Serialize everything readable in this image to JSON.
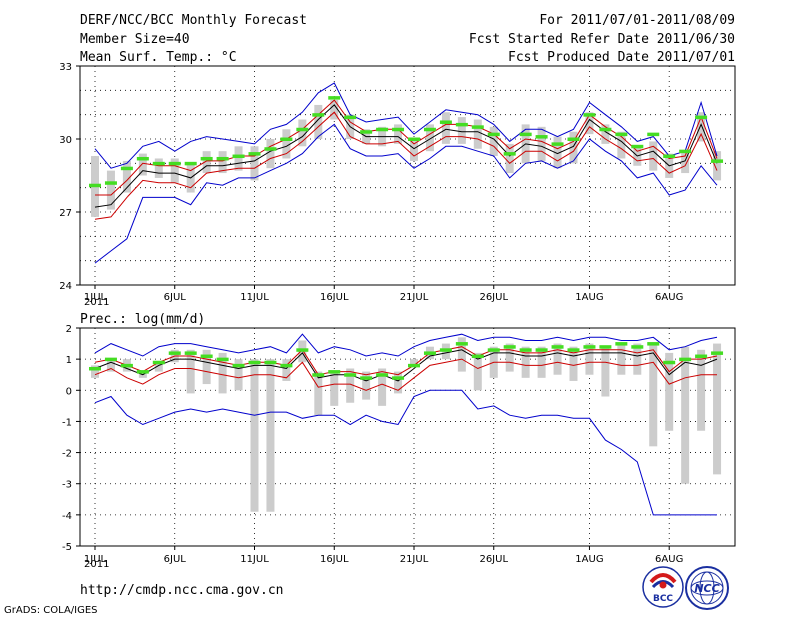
{
  "header": {
    "left": [
      "DERF/NCC/BCC Monthly Forecast",
      "Member Size=40",
      "Mean Surf. Temp.: °C"
    ],
    "right": [
      "For 2011/07/01-2011/08/09",
      "Fcst Started Refer Date 2011/06/30",
      "Fcst Produced Date 2011/07/01"
    ]
  },
  "footer": {
    "url": "http://cmdp.ncc.cma.gov.cn",
    "credit": "GrADS: COLA/IGES",
    "logo1_text": "BCC",
    "logo2_text": "NCC"
  },
  "x_labels": {
    "ticks": [
      "1JUL",
      "6JUL",
      "11JUL",
      "16JUL",
      "21JUL",
      "26JUL",
      "1AUG",
      "6AUG"
    ],
    "tick_days": [
      1,
      6,
      11,
      16,
      21,
      26,
      32,
      37
    ],
    "year": "2011"
  },
  "chart_data": [
    {
      "type": "line",
      "title": "Mean Surf. Temp.: °C",
      "ylabel": "°C",
      "ylim": [
        24,
        33
      ],
      "yticks": [
        24,
        27,
        30,
        33
      ],
      "x": [
        1,
        2,
        3,
        4,
        5,
        6,
        7,
        8,
        9,
        10,
        11,
        12,
        13,
        14,
        15,
        16,
        17,
        18,
        19,
        20,
        21,
        22,
        23,
        24,
        25,
        26,
        27,
        28,
        29,
        30,
        31,
        32,
        33,
        34,
        35,
        36,
        37,
        38,
        39,
        40
      ],
      "series": [
        {
          "name": "max",
          "color": "#0000cc",
          "values": [
            24.9,
            25.4,
            25.9,
            27.6,
            27.6,
            27.6,
            27.3,
            28.2,
            28.1,
            28.4,
            28.4,
            28.7,
            29.0,
            29.4,
            30.1,
            30.6,
            29.6,
            29.3,
            29.3,
            29.4,
            28.8,
            29.2,
            29.7,
            29.7,
            29.5,
            29.3,
            28.4,
            29.0,
            29.1,
            28.8,
            29.1,
            30.0,
            29.5,
            29.1,
            28.4,
            28.6,
            27.7,
            27.9,
            28.9,
            28.1
          ]
        },
        {
          "name": "+1sd",
          "color": "#0000cc",
          "values": [
            29.6,
            28.8,
            29.0,
            29.7,
            29.9,
            29.5,
            29.9,
            30.1,
            30.0,
            29.9,
            29.8,
            30.4,
            30.6,
            31.1,
            31.9,
            32.3,
            31.0,
            30.7,
            30.8,
            30.9,
            30.2,
            30.7,
            31.2,
            31.1,
            31.0,
            30.6,
            29.9,
            30.4,
            30.4,
            30.1,
            30.4,
            31.5,
            31.0,
            30.5,
            29.9,
            30.1,
            29.3,
            29.5,
            31.5,
            29.3
          ]
        },
        {
          "name": "-1sd",
          "color": "#cc0000",
          "values": [
            26.7,
            26.8,
            27.6,
            28.3,
            28.2,
            28.2,
            28.0,
            28.6,
            28.7,
            28.8,
            28.8,
            29.2,
            29.4,
            29.9,
            30.5,
            31.1,
            30.1,
            29.8,
            29.8,
            29.9,
            29.3,
            29.7,
            30.1,
            30.1,
            30.0,
            29.7,
            29.0,
            29.5,
            29.5,
            29.1,
            29.5,
            30.5,
            30.0,
            29.6,
            29.1,
            29.2,
            28.6,
            28.9,
            30.2,
            28.7
          ]
        },
        {
          "name": "mean",
          "color": "#000000",
          "values": [
            27.2,
            27.3,
            28.0,
            28.7,
            28.6,
            28.6,
            28.4,
            28.9,
            28.9,
            29.0,
            29.1,
            29.5,
            29.7,
            30.1,
            30.8,
            31.4,
            30.5,
            30.1,
            30.1,
            30.1,
            29.6,
            30.0,
            30.4,
            30.3,
            30.3,
            30.0,
            29.3,
            29.8,
            29.7,
            29.4,
            29.7,
            30.8,
            30.3,
            29.9,
            29.3,
            29.5,
            28.9,
            29.1,
            30.6,
            29.0
          ]
        },
        {
          "name": "+1sd upper",
          "color": "#cc0000",
          "values": [
            27.7,
            27.7,
            28.3,
            29.0,
            28.9,
            28.9,
            28.7,
            29.1,
            29.1,
            29.3,
            29.3,
            29.7,
            30.0,
            30.4,
            31.0,
            31.6,
            30.7,
            30.3,
            30.4,
            30.4,
            29.8,
            30.2,
            30.6,
            30.6,
            30.5,
            30.2,
            29.6,
            30.0,
            29.9,
            29.6,
            29.9,
            31.0,
            30.5,
            30.1,
            29.5,
            29.7,
            29.2,
            29.3,
            30.9,
            29.2
          ]
        }
      ],
      "bars": {
        "color": "#cccccc",
        "low": [
          26.8,
          27.1,
          27.8,
          28.5,
          28.4,
          28.2,
          27.8,
          28.6,
          28.6,
          28.7,
          28.3,
          28.8,
          29.2,
          29.7,
          30.0,
          30.8,
          30.0,
          29.8,
          29.7,
          29.8,
          29.1,
          29.5,
          29.8,
          29.8,
          29.6,
          29.3,
          28.6,
          29.0,
          29.1,
          28.8,
          29.0,
          30.2,
          29.8,
          29.2,
          28.9,
          28.7,
          28.4,
          28.6,
          29.9,
          28.3
        ],
        "high": [
          29.3,
          28.7,
          29.1,
          29.4,
          29.2,
          29.2,
          29.0,
          29.5,
          29.5,
          29.7,
          29.7,
          30.0,
          30.4,
          30.8,
          31.4,
          31.6,
          31.0,
          30.4,
          30.5,
          30.6,
          30.0,
          30.6,
          31.1,
          30.9,
          30.8,
          30.5,
          29.8,
          30.6,
          30.5,
          30.1,
          30.3,
          31.1,
          30.6,
          30.3,
          29.7,
          29.9,
          29.4,
          29.5,
          31.1,
          29.5
        ]
      },
      "obs": {
        "color": "#44dd22",
        "values": [
          28.1,
          28.2,
          28.8,
          29.2,
          29.0,
          29.0,
          29.0,
          29.2,
          29.2,
          29.3,
          29.4,
          29.6,
          30.0,
          30.4,
          31.0,
          31.7,
          30.9,
          30.3,
          30.4,
          30.4,
          30.0,
          30.4,
          30.7,
          30.6,
          30.5,
          30.2,
          29.4,
          30.2,
          30.1,
          29.8,
          30.0,
          31.0,
          30.4,
          30.2,
          29.7,
          30.2,
          29.3,
          29.5,
          30.9,
          29.1
        ]
      }
    },
    {
      "type": "line",
      "title": "Prec.: log(mm/d)",
      "ylabel": "log(mm/d)",
      "ylim": [
        -5,
        2
      ],
      "yticks": [
        -5,
        -4,
        -3,
        -2,
        -1,
        0,
        1,
        2
      ],
      "x": [
        1,
        2,
        3,
        4,
        5,
        6,
        7,
        8,
        9,
        10,
        11,
        12,
        13,
        14,
        15,
        16,
        17,
        18,
        19,
        20,
        21,
        22,
        23,
        24,
        25,
        26,
        27,
        28,
        29,
        30,
        31,
        32,
        33,
        34,
        35,
        36,
        37,
        38,
        39,
        40
      ],
      "series": [
        {
          "name": "max",
          "color": "#0000cc",
          "values": [
            1.2,
            1.5,
            1.3,
            1.1,
            1.4,
            1.5,
            1.5,
            1.4,
            1.3,
            1.2,
            1.3,
            1.4,
            1.2,
            1.8,
            1.2,
            1.4,
            1.3,
            1.1,
            1.2,
            1.1,
            1.4,
            1.6,
            1.7,
            1.8,
            1.6,
            1.7,
            1.7,
            1.6,
            1.6,
            1.7,
            1.6,
            1.7,
            1.7,
            1.6,
            1.6,
            1.7,
            1.3,
            1.4,
            1.6,
            1.7
          ]
        },
        {
          "name": "+1sd",
          "color": "#cc0000",
          "values": [
            0.9,
            1.0,
            0.8,
            0.6,
            0.9,
            1.1,
            1.1,
            1.0,
            0.9,
            0.8,
            0.9,
            0.9,
            0.8,
            1.3,
            0.5,
            0.6,
            0.6,
            0.5,
            0.6,
            0.5,
            0.8,
            1.2,
            1.3,
            1.4,
            1.1,
            1.3,
            1.3,
            1.2,
            1.2,
            1.3,
            1.2,
            1.3,
            1.3,
            1.3,
            1.2,
            1.3,
            0.6,
            1.0,
            1.0,
            1.1
          ]
        },
        {
          "name": "mean",
          "color": "#000000",
          "values": [
            0.7,
            0.9,
            0.7,
            0.5,
            0.8,
            1.0,
            1.0,
            0.9,
            0.8,
            0.7,
            0.8,
            0.8,
            0.7,
            1.2,
            0.4,
            0.5,
            0.5,
            0.3,
            0.5,
            0.3,
            0.7,
            1.1,
            1.2,
            1.3,
            1.0,
            1.2,
            1.2,
            1.1,
            1.1,
            1.2,
            1.1,
            1.2,
            1.2,
            1.2,
            1.1,
            1.2,
            0.5,
            0.9,
            0.8,
            1.0
          ]
        },
        {
          "name": "-1sd",
          "color": "#cc0000",
          "values": [
            0.5,
            0.7,
            0.4,
            0.2,
            0.5,
            0.7,
            0.7,
            0.6,
            0.5,
            0.4,
            0.5,
            0.5,
            0.4,
            0.9,
            0.1,
            0.2,
            0.2,
            0.0,
            0.2,
            0.0,
            0.4,
            0.8,
            0.9,
            1.0,
            0.7,
            0.9,
            0.9,
            0.8,
            0.8,
            0.9,
            0.8,
            0.9,
            0.9,
            0.8,
            0.8,
            0.9,
            0.2,
            0.4,
            0.5,
            0.5
          ]
        },
        {
          "name": "min",
          "color": "#0000cc",
          "values": [
            -0.4,
            -0.2,
            -0.8,
            -1.1,
            -0.9,
            -0.7,
            -0.6,
            -0.7,
            -0.6,
            -0.7,
            -0.8,
            -0.7,
            -0.7,
            -0.9,
            -0.8,
            -0.8,
            -1.1,
            -0.8,
            -1.0,
            -1.1,
            -0.2,
            0.0,
            0.0,
            0.0,
            -0.6,
            -0.5,
            -0.8,
            -0.9,
            -0.8,
            -0.8,
            -0.9,
            -0.9,
            -1.6,
            -1.9,
            -2.3,
            -4.0,
            -4.0,
            -4.0,
            -4.0,
            -4.0
          ]
        }
      ],
      "bars": {
        "color": "#cccccc",
        "low": [
          0.4,
          0.6,
          0.6,
          0.4,
          0.6,
          0.9,
          -0.1,
          0.2,
          -0.1,
          0.0,
          -3.9,
          -3.9,
          0.3,
          0.9,
          -0.8,
          -0.5,
          -0.4,
          -0.3,
          -0.5,
          -0.1,
          0.8,
          1.0,
          1.0,
          0.6,
          0.0,
          0.4,
          0.6,
          0.4,
          0.4,
          0.5,
          0.3,
          0.5,
          -0.2,
          0.5,
          0.5,
          -1.8,
          -1.3,
          -3.0,
          -1.3,
          -2.7
        ],
        "high": [
          0.8,
          1.0,
          1.0,
          0.6,
          0.9,
          1.3,
          1.3,
          1.3,
          1.2,
          1.0,
          1.0,
          1.0,
          1.0,
          1.6,
          0.6,
          0.6,
          0.7,
          0.6,
          0.7,
          0.6,
          1.0,
          1.4,
          1.5,
          1.7,
          1.2,
          1.4,
          1.5,
          1.4,
          1.4,
          1.5,
          1.4,
          1.5,
          1.4,
          1.5,
          1.5,
          1.5,
          1.2,
          1.4,
          1.3,
          1.5
        ]
      },
      "obs": {
        "color": "#44dd22",
        "values": [
          0.7,
          1.0,
          0.8,
          0.6,
          0.9,
          1.2,
          1.2,
          1.1,
          1.0,
          0.8,
          0.9,
          0.9,
          0.8,
          1.3,
          0.5,
          0.6,
          0.5,
          0.4,
          0.5,
          0.4,
          0.8,
          1.2,
          1.3,
          1.5,
          1.1,
          1.3,
          1.4,
          1.3,
          1.3,
          1.4,
          1.3,
          1.4,
          1.4,
          1.5,
          1.4,
          1.5,
          0.9,
          1.0,
          1.1,
          1.2
        ]
      }
    }
  ]
}
